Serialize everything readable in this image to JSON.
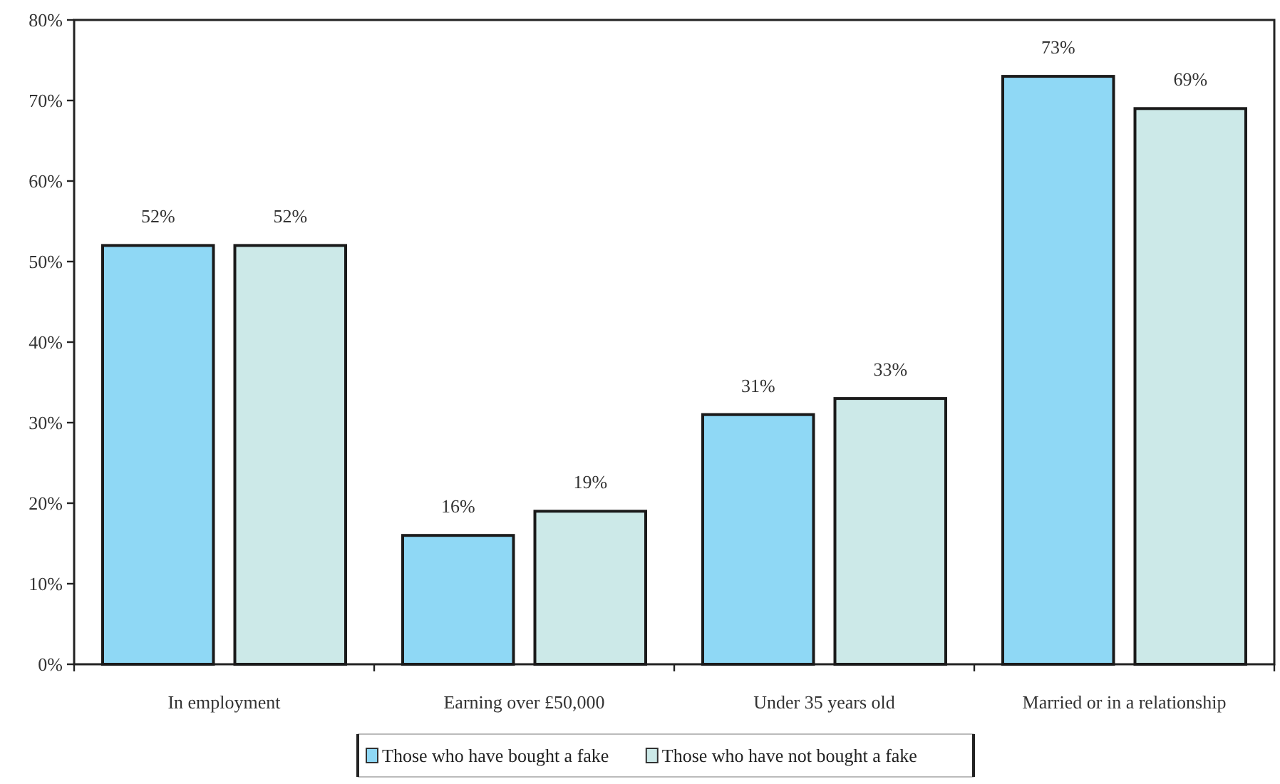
{
  "chart_data": {
    "type": "bar",
    "categories": [
      "In employment",
      "Earning over £50,000",
      "Under 35 years old",
      "Married or in a relationship"
    ],
    "series": [
      {
        "name": "Those who have bought a fake",
        "color": "#8fd8f5",
        "values": [
          52,
          16,
          31,
          73
        ],
        "value_labels": [
          "52%",
          "16%",
          "31%",
          "73%"
        ]
      },
      {
        "name": "Those who have not bought a fake",
        "color": "#cce9e8",
        "values": [
          52,
          19,
          33,
          69
        ],
        "value_labels": [
          "52%",
          "19%",
          "33%",
          "69%"
        ]
      }
    ],
    "ylim": [
      0,
      80
    ],
    "yticks": [
      {
        "value": 0,
        "label": "0%"
      },
      {
        "value": 10,
        "label": "10%"
      },
      {
        "value": 20,
        "label": "20%"
      },
      {
        "value": 30,
        "label": "30%"
      },
      {
        "value": 40,
        "label": "40%"
      },
      {
        "value": 50,
        "label": "50%"
      },
      {
        "value": 60,
        "label": "60%"
      },
      {
        "value": 70,
        "label": "70%"
      },
      {
        "value": 80,
        "label": "80%"
      }
    ],
    "grid": false,
    "legend": "bottom"
  }
}
